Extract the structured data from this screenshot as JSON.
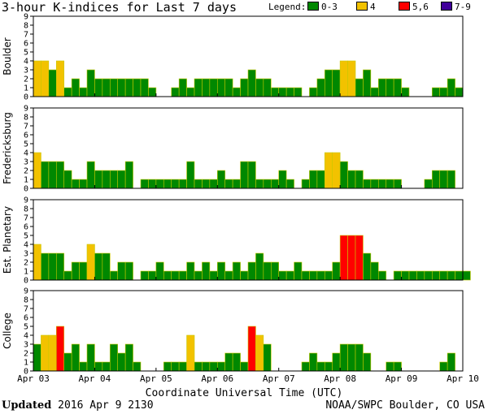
{
  "title": "3-hour K-indices for Last 7 days",
  "legend": {
    "label": "Legend:",
    "items": [
      {
        "label": "0-3",
        "color": "#008800"
      },
      {
        "label": "4",
        "color": "#f2c200"
      },
      {
        "label": "5,6",
        "color": "#ff0000"
      },
      {
        "label": "7-9",
        "color": "#40009a"
      }
    ]
  },
  "footer": {
    "updated_label": "Updated",
    "updated_value": "2016 Apr  9 2130",
    "source": "NOAA/SWPC Boulder, CO USA"
  },
  "chart_data": {
    "type": "bar",
    "xlabel": "Coordinate Universal Time (UTC)",
    "x_ticks": [
      "Apr 03",
      "Apr 04",
      "Apr 05",
      "Apr 06",
      "Apr 07",
      "Apr 08",
      "Apr 09",
      "Apr 10"
    ],
    "ylim": [
      0,
      9
    ],
    "y_ticks": [
      "0",
      "1",
      "2",
      "3",
      "4",
      "5",
      "6",
      "7",
      "8",
      "9"
    ],
    "color_scale": {
      "0-3": "#008800",
      "4": "#f2c200",
      "5,6": "#ff0000",
      "7-9": "#40009a"
    },
    "panels": [
      {
        "name": "Boulder",
        "values": [
          4,
          4,
          3,
          4,
          1,
          2,
          1,
          3,
          2,
          2,
          2,
          2,
          2,
          2,
          2,
          1,
          0,
          0,
          1,
          2,
          1,
          2,
          2,
          2,
          2,
          2,
          1,
          2,
          3,
          2,
          2,
          1,
          1,
          1,
          1,
          0,
          1,
          2,
          3,
          3,
          4,
          4,
          2,
          3,
          1,
          2,
          2,
          2,
          1,
          0,
          0,
          0,
          1,
          1,
          2,
          1,
          0
        ]
      },
      {
        "name": "Fredericksburg",
        "values": [
          4,
          3,
          3,
          3,
          2,
          1,
          1,
          3,
          2,
          2,
          2,
          2,
          3,
          0,
          1,
          1,
          1,
          1,
          1,
          1,
          3,
          1,
          1,
          1,
          2,
          1,
          1,
          3,
          3,
          1,
          1,
          1,
          2,
          1,
          0,
          1,
          2,
          2,
          4,
          4,
          3,
          2,
          2,
          1,
          1,
          1,
          1,
          1,
          0,
          0,
          0,
          1,
          2,
          2,
          2,
          0
        ]
      },
      {
        "name": "Est. Planetary",
        "values": [
          4,
          3,
          3,
          3,
          1,
          2,
          2,
          4,
          3,
          3,
          1,
          2,
          2,
          0,
          1,
          1,
          2,
          1,
          1,
          1,
          2,
          1,
          2,
          1,
          2,
          1,
          2,
          1,
          2,
          3,
          2,
          2,
          1,
          1,
          2,
          1,
          1,
          1,
          1,
          2,
          5,
          5,
          5,
          3,
          2,
          1,
          0,
          1,
          1,
          1,
          1,
          1,
          1,
          1,
          1,
          1,
          1
        ]
      },
      {
        "name": "College",
        "values": [
          3,
          4,
          4,
          5,
          2,
          3,
          1,
          3,
          1,
          1,
          3,
          2,
          3,
          1,
          0,
          0,
          0,
          1,
          1,
          1,
          4,
          1,
          1,
          1,
          1,
          2,
          2,
          1,
          5,
          4,
          3,
          0,
          0,
          0,
          0,
          1,
          2,
          1,
          1,
          2,
          3,
          3,
          3,
          2,
          0,
          0,
          1,
          1,
          0,
          0,
          0,
          0,
          0,
          1,
          2,
          0,
          0
        ]
      }
    ]
  }
}
